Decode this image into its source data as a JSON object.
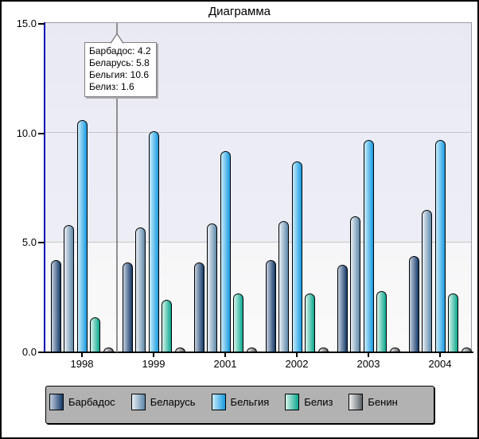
{
  "title": "Диаграмма",
  "chart_data": {
    "type": "bar",
    "title": "Диаграмма",
    "categories": [
      "1998",
      "1999",
      "2001",
      "2002",
      "2003",
      "2004"
    ],
    "series": [
      {
        "name": "Барбадос",
        "values": [
          4.2,
          4.1,
          4.1,
          4.2,
          4.0,
          4.4
        ]
      },
      {
        "name": "Беларусь",
        "values": [
          5.8,
          5.7,
          5.9,
          6.0,
          6.2,
          6.5
        ]
      },
      {
        "name": "Бельгия",
        "values": [
          10.6,
          10.1,
          9.2,
          8.7,
          9.7,
          9.7
        ]
      },
      {
        "name": "Белиз",
        "values": [
          1.6,
          2.4,
          2.7,
          2.7,
          2.8,
          2.7
        ]
      },
      {
        "name": "Бенин",
        "values": [
          0.2,
          0.2,
          0.2,
          0.2,
          0.2,
          0.2
        ]
      }
    ],
    "ylim": [
      0,
      15
    ],
    "y_tick_labels": [
      "15.0",
      "10.0",
      "5.0",
      "0.0"
    ],
    "y_tick_values": [
      15,
      10,
      5,
      0
    ],
    "grid": "horizontal",
    "legend_position": "bottom"
  },
  "tooltip": {
    "lines": [
      "Барбадос: 4.2",
      "Беларусь: 5.8",
      "Бельгия: 10.6",
      "Белиз: 1.6"
    ]
  },
  "legend": {
    "items": [
      {
        "label": "Барбадос",
        "color_light": "#c3cfdf",
        "color_dark": "#133867"
      },
      {
        "label": "Беларусь",
        "color_light": "#e9eff4",
        "color_dark": "#5d87a9"
      },
      {
        "label": "Бельгия",
        "color_light": "#c9ecfa",
        "color_dark": "#189ae1"
      },
      {
        "label": "Белиз",
        "color_light": "#d7f3eb",
        "color_dark": "#0aa78d"
      },
      {
        "label": "Бенин",
        "color_light": "#f1f1f1",
        "color_dark": "#596066"
      }
    ]
  },
  "colors": {
    "axis_line": "#0000b4",
    "baseline": "#000000",
    "gridline": "#c6c6c6",
    "plot_bg_top": "#e9e9f4",
    "plot_bg_bottom": "#fafafa",
    "legend_bg": "#b2b2b2",
    "callout_line": "#8f8f8f"
  }
}
